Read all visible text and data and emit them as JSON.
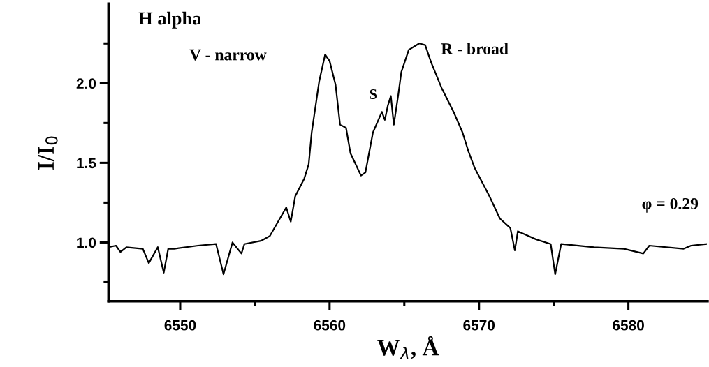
{
  "chart_data": {
    "type": "line",
    "xlabel": "W$_{λ}$, Å",
    "ylabel": "I/I$_{0}$",
    "annotations": [
      "H alpha",
      "V - narrow",
      "S",
      "R - broad",
      "φ = 0.29"
    ],
    "x": [
      6545.2,
      6545.7,
      6546.0,
      6546.4,
      6547.5,
      6547.9,
      6548.5,
      6548.9,
      6549.2,
      6549.6,
      6551.2,
      6552.4,
      6552.9,
      6553.5,
      6554.1,
      6554.3,
      6555.4,
      6556.0,
      6557.1,
      6557.4,
      6557.7,
      6558.3,
      6558.6,
      6558.8,
      6559.3,
      6559.7,
      6560.0,
      6560.4,
      6560.7,
      6561.1,
      6561.4,
      6562.1,
      6562.4,
      6562.9,
      6563.5,
      6563.7,
      6563.9,
      6564.1,
      6564.3,
      6564.6,
      6564.8,
      6565.3,
      6566.0,
      6566.4,
      6566.8,
      6567.5,
      6568.3,
      6568.9,
      6569.3,
      6569.7,
      6570.7,
      6571.4,
      6572.1,
      6572.4,
      6572.6,
      6573.8,
      6574.8,
      6575.1,
      6575.5,
      6577.7,
      6579.7,
      6581.0,
      6581.4,
      6583.7,
      6584.2,
      6585.2
    ],
    "values": [
      0.97,
      0.98,
      0.94,
      0.97,
      0.96,
      0.87,
      0.97,
      0.81,
      0.96,
      0.96,
      0.98,
      0.99,
      0.8,
      1.0,
      0.93,
      0.99,
      1.01,
      1.04,
      1.22,
      1.13,
      1.29,
      1.4,
      1.49,
      1.69,
      2.01,
      2.18,
      2.14,
      1.99,
      1.74,
      1.72,
      1.56,
      1.42,
      1.44,
      1.69,
      1.82,
      1.77,
      1.86,
      1.92,
      1.74,
      1.93,
      2.07,
      2.21,
      2.25,
      2.24,
      2.13,
      1.97,
      1.82,
      1.69,
      1.57,
      1.47,
      1.29,
      1.15,
      1.09,
      0.95,
      1.07,
      1.02,
      0.99,
      0.8,
      0.99,
      0.97,
      0.96,
      0.93,
      0.98,
      0.96,
      0.98,
      0.99
    ],
    "color": "#000000",
    "xlim": [
      6545.2,
      6585.3
    ],
    "ylim": [
      0.63,
      2.5
    ],
    "xticks": [
      6550,
      {
        "value": 6555,
        "label": null
      },
      6560,
      {
        "value": 6565,
        "label": null
      },
      6570,
      {
        "value": 6575,
        "label": null
      },
      6580
    ],
    "yticks": [
      {
        "value": 0.75,
        "label": null
      },
      {
        "value": 1.0,
        "label": "1.0"
      },
      {
        "value": 1.25,
        "label": null
      },
      {
        "value": 1.5,
        "label": "1.5"
      },
      {
        "value": 1.75,
        "label": null
      },
      {
        "value": 2.0,
        "label": "2.0"
      },
      {
        "value": 2.25,
        "label": null
      }
    ],
    "grid": false,
    "legend": false,
    "marker": "none",
    "line_style": "solid"
  }
}
